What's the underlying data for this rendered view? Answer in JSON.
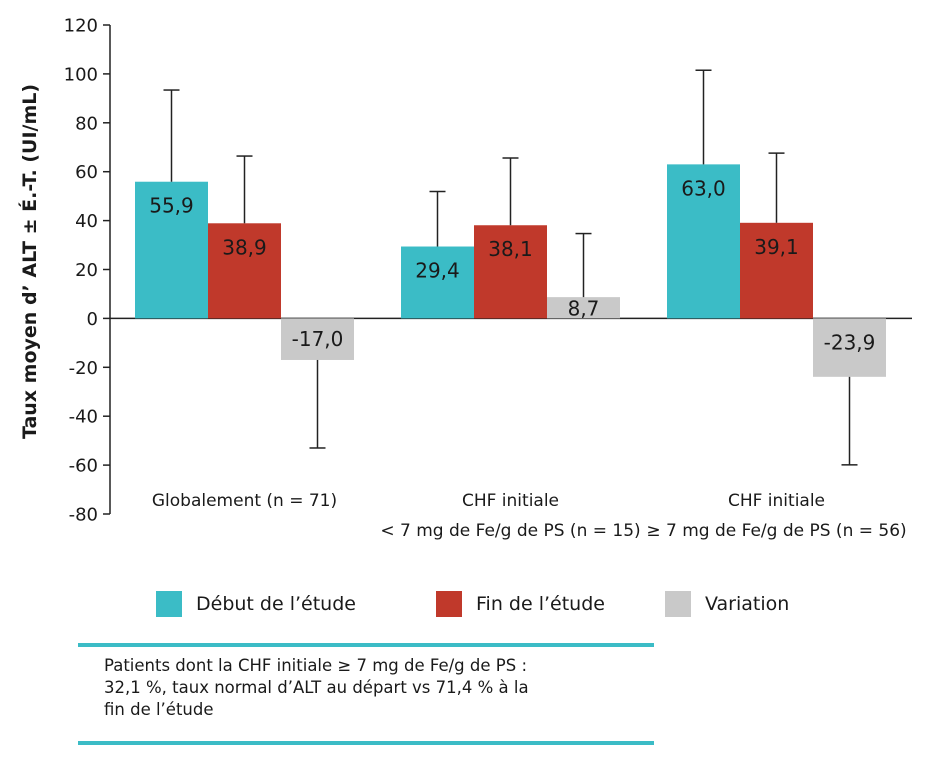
{
  "chart_data": {
    "type": "bar",
    "ylabel": "Taux moyen d’ ALT ± É.-T. (UI/mL)",
    "ylim": [
      -80,
      120
    ],
    "yticks": [
      120,
      100,
      80,
      60,
      40,
      20,
      0,
      -20,
      -40,
      -60,
      -80
    ],
    "grid": false,
    "categories": [
      {
        "lines": [
          "Globalement (n = 71)"
        ]
      },
      {
        "lines": [
          "CHF initiale",
          "< 7 mg de Fe/g de PS (n = 15)"
        ]
      },
      {
        "lines": [
          "CHF initiale",
          "≥ 7 mg de Fe/g de PS (n = 56)"
        ]
      }
    ],
    "series": [
      {
        "name": "Début de l’étude",
        "color": "#3bbcc6",
        "values": [
          55.9,
          29.4,
          63.0
        ],
        "errors": [
          37.5,
          22.5,
          38.5
        ],
        "labels": [
          "55,9",
          "29,4",
          "63,0"
        ]
      },
      {
        "name": "Fin de l’étude",
        "color": "#c0392b",
        "values": [
          38.9,
          38.1,
          39.1
        ],
        "errors": [
          27.5,
          27.5,
          28.5
        ],
        "labels": [
          "38,9",
          "38,1",
          "39,1"
        ]
      },
      {
        "name": "Variation",
        "color": "#c9c9c9",
        "values": [
          -17.0,
          8.7,
          -23.9
        ],
        "errors": [
          36.0,
          26.0,
          36.0
        ],
        "labels": [
          "-17,0",
          "8,7",
          "-23,9"
        ]
      }
    ],
    "legend_position": "bottom"
  },
  "note": {
    "text": "Patients dont la CHF initiale ≥ 7 mg de Fe/g de PS :\n32,1 %, taux normal d’ALT au départ vs 71,4 % à la\nfin de l’étude",
    "rule_color": "#3bbcc6"
  }
}
